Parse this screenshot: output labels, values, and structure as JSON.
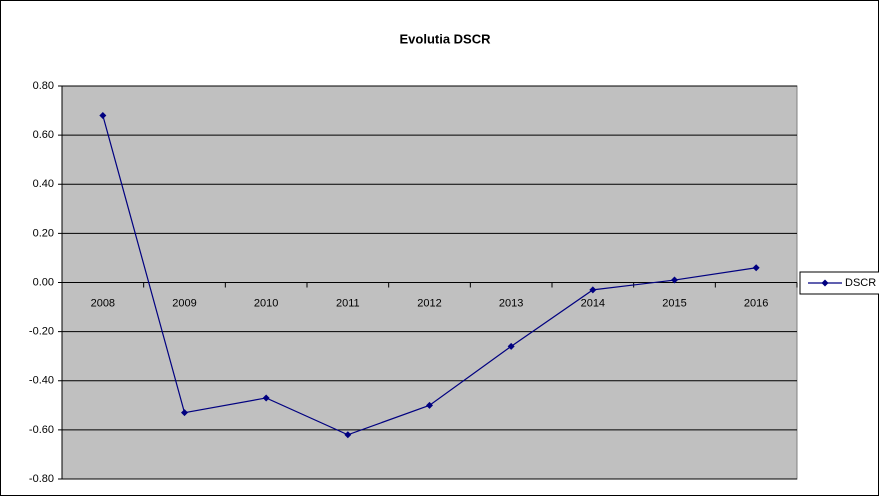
{
  "chart_data": {
    "type": "line",
    "title": "Evolutia DSCR",
    "categories": [
      "2008",
      "2009",
      "2010",
      "2011",
      "2012",
      "2013",
      "2014",
      "2015",
      "2016"
    ],
    "series": [
      {
        "name": "DSCR",
        "color": "#000080",
        "values": [
          0.68,
          -0.53,
          -0.47,
          -0.62,
          -0.5,
          -0.26,
          -0.03,
          0.01,
          0.06
        ]
      }
    ],
    "ylim": [
      -0.8,
      0.8
    ],
    "yticks": [
      {
        "value": -0.8,
        "label": "-0.80"
      },
      {
        "value": -0.6,
        "label": "-0.60"
      },
      {
        "value": -0.4,
        "label": "-0.40"
      },
      {
        "value": -0.2,
        "label": "-0.20"
      },
      {
        "value": 0,
        "label": "0.00"
      },
      {
        "value": 0.2,
        "label": "0.20"
      },
      {
        "value": 0.4,
        "label": "0.40"
      },
      {
        "value": 0.6,
        "label": "0.60"
      },
      {
        "value": 0.8,
        "label": "0.80"
      }
    ],
    "grid": true
  }
}
